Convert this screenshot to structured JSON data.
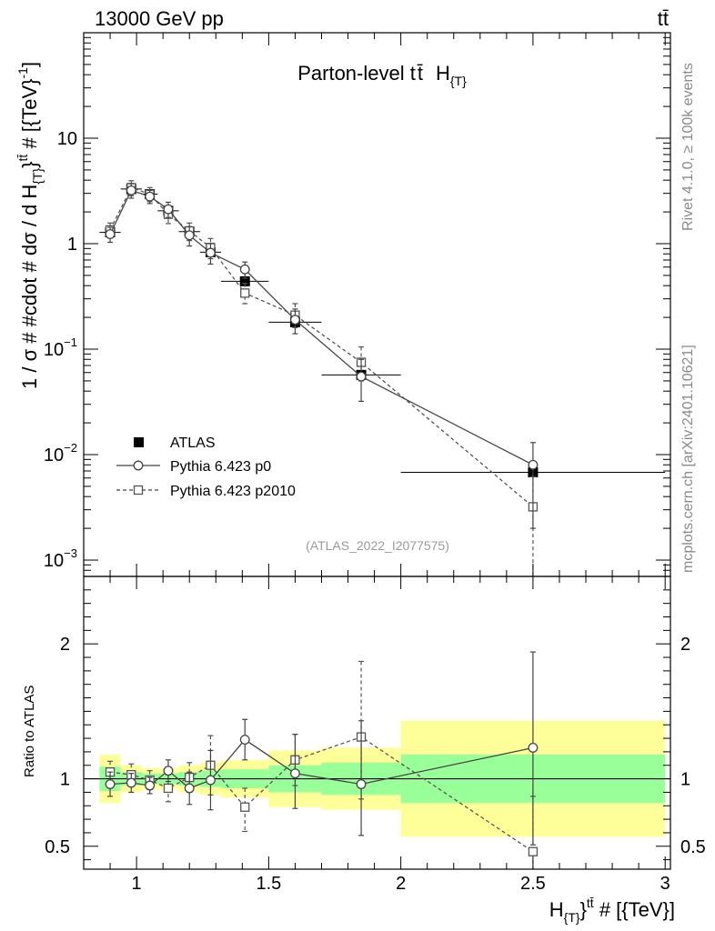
{
  "header": {
    "left": "13000 GeV pp",
    "right": "tt̄"
  },
  "side_labels": {
    "rivet": "Rivet 4.1.0, ≥ 100k events",
    "mcplots": "mcplots.cern.ch [arXiv:2401.10621]"
  },
  "chart_data": [
    {
      "type": "line",
      "panel": "main",
      "title_parts": [
        "Parton-level t",
        "t̄",
        "H",
        "{T}"
      ],
      "ylabel_parts": [
        "1 / σ # #cdot # dσ / d H",
        "{T}",
        "}",
        "tt̄",
        " # [{TeV}",
        "-1",
        "]"
      ],
      "yscale": "log",
      "ylim": [
        0.0007,
        100
      ],
      "xlim": [
        0.8,
        3.02
      ],
      "y_ticks": [
        {
          "value": 10,
          "label": "10"
        },
        {
          "value": 1,
          "label": "1"
        },
        {
          "value": 0.1,
          "base": "10",
          "exp": "−1"
        },
        {
          "value": 0.01,
          "base": "10",
          "exp": "−2"
        },
        {
          "value": 0.001,
          "base": "10",
          "exp": "−3"
        }
      ],
      "watermark": "(ATLAS_2022_I2077575)",
      "legend": [
        {
          "name": "ATLAS",
          "style": "filled-square"
        },
        {
          "name": "Pythia 6.423 p0",
          "style": "solid-circle"
        },
        {
          "name": "Pythia 6.423 p2010",
          "style": "dashed-square"
        }
      ],
      "series": [
        {
          "name": "ATLAS",
          "x": [
            0.9,
            0.98,
            1.05,
            1.12,
            1.2,
            1.28,
            1.41,
            1.6,
            1.85,
            2.5
          ],
          "y": [
            1.28,
            3.3,
            2.95,
            2.05,
            1.3,
            0.83,
            0.44,
            0.18,
            0.057,
            0.0068
          ],
          "xerr": [
            0.04,
            0.04,
            0.03,
            0.04,
            0.04,
            0.04,
            0.09,
            0.1,
            0.15,
            0.5
          ]
        },
        {
          "name": "Pythia 6.423 p0",
          "x": [
            0.9,
            0.98,
            1.05,
            1.12,
            1.2,
            1.28,
            1.41,
            1.6,
            1.85,
            2.5
          ],
          "y": [
            1.23,
            3.2,
            2.8,
            2.12,
            1.2,
            0.82,
            0.57,
            0.19,
            0.055,
            0.008
          ],
          "yerr_up": [
            0.2,
            0.5,
            0.4,
            0.35,
            0.25,
            0.18,
            0.1,
            0.05,
            0.025,
            0.005
          ],
          "yerr_down": [
            0.2,
            0.5,
            0.4,
            0.35,
            0.25,
            0.18,
            0.1,
            0.05,
            0.023,
            0.006
          ]
        },
        {
          "name": "Pythia 6.423 p2010",
          "x": [
            0.9,
            0.98,
            1.05,
            1.12,
            1.2,
            1.28,
            1.41,
            1.6,
            1.85,
            2.5
          ],
          "y": [
            1.35,
            3.4,
            2.95,
            1.9,
            1.32,
            0.92,
            0.34,
            0.21,
            0.075,
            0.0032
          ],
          "yerr_up": [
            0.22,
            0.55,
            0.45,
            0.35,
            0.25,
            0.2,
            0.08,
            0.06,
            0.03,
            0.003
          ],
          "yerr_down": [
            0.22,
            0.55,
            0.45,
            0.35,
            0.25,
            0.2,
            0.07,
            0.05,
            0.025,
            0.0031
          ]
        }
      ]
    },
    {
      "type": "line",
      "panel": "ratio",
      "ylabel": "Ratio to ATLAS",
      "ylim": [
        0.33,
        2.5
      ],
      "xlim": [
        0.8,
        3.02
      ],
      "y_ticks": [
        {
          "value": 2,
          "label": "2"
        },
        {
          "value": 1,
          "label": "1"
        },
        {
          "value": 0.5,
          "label": "0.5"
        }
      ],
      "x_ticks": [
        {
          "value": 1,
          "label": "1"
        },
        {
          "value": 1.5,
          "label": "1.5"
        },
        {
          "value": 2,
          "label": "2"
        },
        {
          "value": 2.5,
          "label": "2.5"
        },
        {
          "value": 3,
          "label": "3"
        }
      ],
      "xlabel_parts": [
        "H",
        "{T}",
        "}",
        "tt̄",
        " # [{TeV}]"
      ],
      "bands": [
        {
          "x0": 0.86,
          "x1": 0.94,
          "green_lo": 0.91,
          "green_hi": 1.09,
          "yellow_lo": 0.82,
          "yellow_hi": 1.18
        },
        {
          "x0": 0.94,
          "x1": 1.02,
          "green_lo": 0.95,
          "green_hi": 1.05,
          "yellow_lo": 0.9,
          "yellow_hi": 1.1
        },
        {
          "x0": 1.02,
          "x1": 1.08,
          "green_lo": 0.96,
          "green_hi": 1.04,
          "yellow_lo": 0.92,
          "yellow_hi": 1.08
        },
        {
          "x0": 1.08,
          "x1": 1.16,
          "green_lo": 0.96,
          "green_hi": 1.04,
          "yellow_lo": 0.92,
          "yellow_hi": 1.08
        },
        {
          "x0": 1.16,
          "x1": 1.24,
          "green_lo": 0.95,
          "green_hi": 1.05,
          "yellow_lo": 0.9,
          "yellow_hi": 1.1
        },
        {
          "x0": 1.24,
          "x1": 1.32,
          "green_lo": 0.94,
          "green_hi": 1.06,
          "yellow_lo": 0.88,
          "yellow_hi": 1.12
        },
        {
          "x0": 1.32,
          "x1": 1.5,
          "green_lo": 0.93,
          "green_hi": 1.07,
          "yellow_lo": 0.86,
          "yellow_hi": 1.14
        },
        {
          "x0": 1.5,
          "x1": 1.7,
          "green_lo": 0.9,
          "green_hi": 1.1,
          "yellow_lo": 0.79,
          "yellow_hi": 1.21
        },
        {
          "x0": 1.7,
          "x1": 2.0,
          "green_lo": 0.88,
          "green_hi": 1.12,
          "yellow_lo": 0.77,
          "yellow_hi": 1.23
        },
        {
          "x0": 2.0,
          "x1": 3.0,
          "green_lo": 0.82,
          "green_hi": 1.18,
          "yellow_lo": 0.57,
          "yellow_hi": 1.43
        }
      ],
      "series": [
        {
          "name": "Pythia 6.423 p0",
          "x": [
            0.9,
            0.98,
            1.05,
            1.12,
            1.2,
            1.28,
            1.41,
            1.6,
            1.85,
            2.5
          ],
          "y": [
            0.96,
            0.97,
            0.95,
            1.06,
            0.93,
            0.99,
            1.29,
            1.04,
            0.96,
            1.23
          ],
          "yerr_up": [
            0.09,
            0.07,
            0.06,
            0.08,
            0.12,
            0.22,
            0.15,
            0.29,
            0.47,
            0.71
          ],
          "yerr_down": [
            0.09,
            0.07,
            0.06,
            0.08,
            0.12,
            0.22,
            0.15,
            0.26,
            0.38,
            0.72
          ]
        },
        {
          "name": "Pythia 6.423 p2010",
          "x": [
            0.9,
            0.98,
            1.05,
            1.12,
            1.2,
            1.28,
            1.41,
            1.6,
            1.85,
            2.5
          ],
          "y": [
            1.05,
            1.03,
            0.99,
            0.93,
            1.01,
            1.1,
            0.79,
            1.14,
            1.31,
            0.46
          ],
          "yerr_up": [
            0.08,
            0.08,
            0.07,
            0.1,
            0.11,
            0.22,
            0.14,
            0.19,
            0.56,
            0.41
          ],
          "yerr_down": [
            0.08,
            0.08,
            0.07,
            0.1,
            0.11,
            0.22,
            0.18,
            0.19,
            0.46,
            0.45
          ]
        }
      ]
    }
  ]
}
